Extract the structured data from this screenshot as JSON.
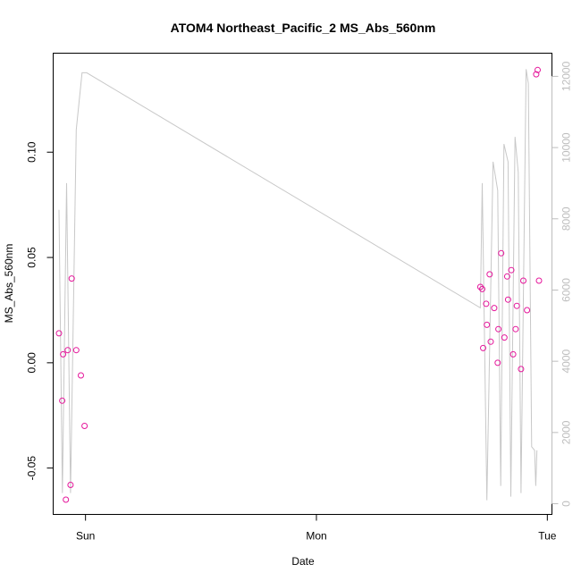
{
  "chart_data": {
    "type": "scatter",
    "title": "ATOM4 Northeast_Pacific_2 MS_Abs_560nm",
    "xlabel": "Date",
    "ylabel": "MS_Abs_560nm",
    "x_unit": "days",
    "x_ticks": [
      {
        "x": 0,
        "label": "Sun"
      },
      {
        "x": 1,
        "label": "Mon"
      },
      {
        "x": 2,
        "label": "Tue"
      }
    ],
    "xlim": [
      -0.14,
      2.02
    ],
    "ylim": [
      -0.072,
      0.147
    ],
    "y_ticks": [
      -0.05,
      0.0,
      0.05,
      0.1
    ],
    "y_tick_labels": [
      "-0.05",
      "0.00",
      "0.05",
      "0.10"
    ],
    "y2lim": [
      -300,
      12650
    ],
    "y2_ticks": [
      0,
      2000,
      4000,
      6000,
      8000,
      10000,
      12000
    ],
    "y2_tick_labels": [
      "0",
      "2000",
      "4000",
      "6000",
      "8000",
      "10000",
      "12000"
    ],
    "grid": false,
    "colors": {
      "points": "#e5179b",
      "depth_line": "#c8c8c8",
      "right_axis": "#bdbdbd"
    },
    "series": [
      {
        "kind": "points",
        "axis": "left",
        "points": [
          {
            "x": -0.115,
            "y": 0.014
          },
          {
            "x": -0.101,
            "y": -0.018
          },
          {
            "x": -0.097,
            "y": 0.004
          },
          {
            "x": -0.085,
            "y": -0.065
          },
          {
            "x": -0.077,
            "y": 0.006
          },
          {
            "x": -0.065,
            "y": -0.058
          },
          {
            "x": -0.06,
            "y": 0.04
          },
          {
            "x": -0.04,
            "y": 0.006
          },
          {
            "x": -0.02,
            "y": -0.006
          },
          {
            "x": -0.004,
            "y": -0.03
          },
          {
            "x": 1.71,
            "y": 0.036
          },
          {
            "x": 1.718,
            "y": 0.035
          },
          {
            "x": 1.722,
            "y": 0.007
          },
          {
            "x": 1.735,
            "y": 0.028
          },
          {
            "x": 1.738,
            "y": 0.018
          },
          {
            "x": 1.75,
            "y": 0.042
          },
          {
            "x": 1.755,
            "y": 0.01
          },
          {
            "x": 1.77,
            "y": 0.026
          },
          {
            "x": 1.785,
            "y": 0.0
          },
          {
            "x": 1.788,
            "y": 0.016
          },
          {
            "x": 1.8,
            "y": 0.052
          },
          {
            "x": 1.814,
            "y": 0.012
          },
          {
            "x": 1.826,
            "y": 0.041
          },
          {
            "x": 1.83,
            "y": 0.03
          },
          {
            "x": 1.844,
            "y": 0.044
          },
          {
            "x": 1.852,
            "y": 0.004
          },
          {
            "x": 1.863,
            "y": 0.016
          },
          {
            "x": 1.868,
            "y": 0.027
          },
          {
            "x": 1.886,
            "y": -0.003
          },
          {
            "x": 1.896,
            "y": 0.039
          },
          {
            "x": 1.912,
            "y": 0.025
          },
          {
            "x": 1.952,
            "y": 0.137
          },
          {
            "x": 1.958,
            "y": 0.139
          },
          {
            "x": 1.964,
            "y": 0.039
          }
        ]
      },
      {
        "kind": "line",
        "axis": "right",
        "points": [
          {
            "x": -0.115,
            "y": 8250
          },
          {
            "x": -0.1,
            "y": 300
          },
          {
            "x": -0.082,
            "y": 9000
          },
          {
            "x": -0.065,
            "y": 300
          },
          {
            "x": -0.04,
            "y": 10500
          },
          {
            "x": -0.015,
            "y": 12100
          },
          {
            "x": 0.005,
            "y": 12100
          },
          {
            "x": 1.71,
            "y": 5500
          },
          {
            "x": 1.718,
            "y": 9000
          },
          {
            "x": 1.738,
            "y": 100
          },
          {
            "x": 1.765,
            "y": 9600
          },
          {
            "x": 1.785,
            "y": 8800
          },
          {
            "x": 1.798,
            "y": 500
          },
          {
            "x": 1.812,
            "y": 10100
          },
          {
            "x": 1.83,
            "y": 9600
          },
          {
            "x": 1.842,
            "y": 200
          },
          {
            "x": 1.86,
            "y": 10300
          },
          {
            "x": 1.874,
            "y": 9300
          },
          {
            "x": 1.886,
            "y": 300
          },
          {
            "x": 1.908,
            "y": 12200
          },
          {
            "x": 1.918,
            "y": 11800
          },
          {
            "x": 1.932,
            "y": 1600
          },
          {
            "x": 1.945,
            "y": 1500
          },
          {
            "x": 1.95,
            "y": 500
          },
          {
            "x": 1.955,
            "y": 1500
          }
        ]
      }
    ]
  }
}
